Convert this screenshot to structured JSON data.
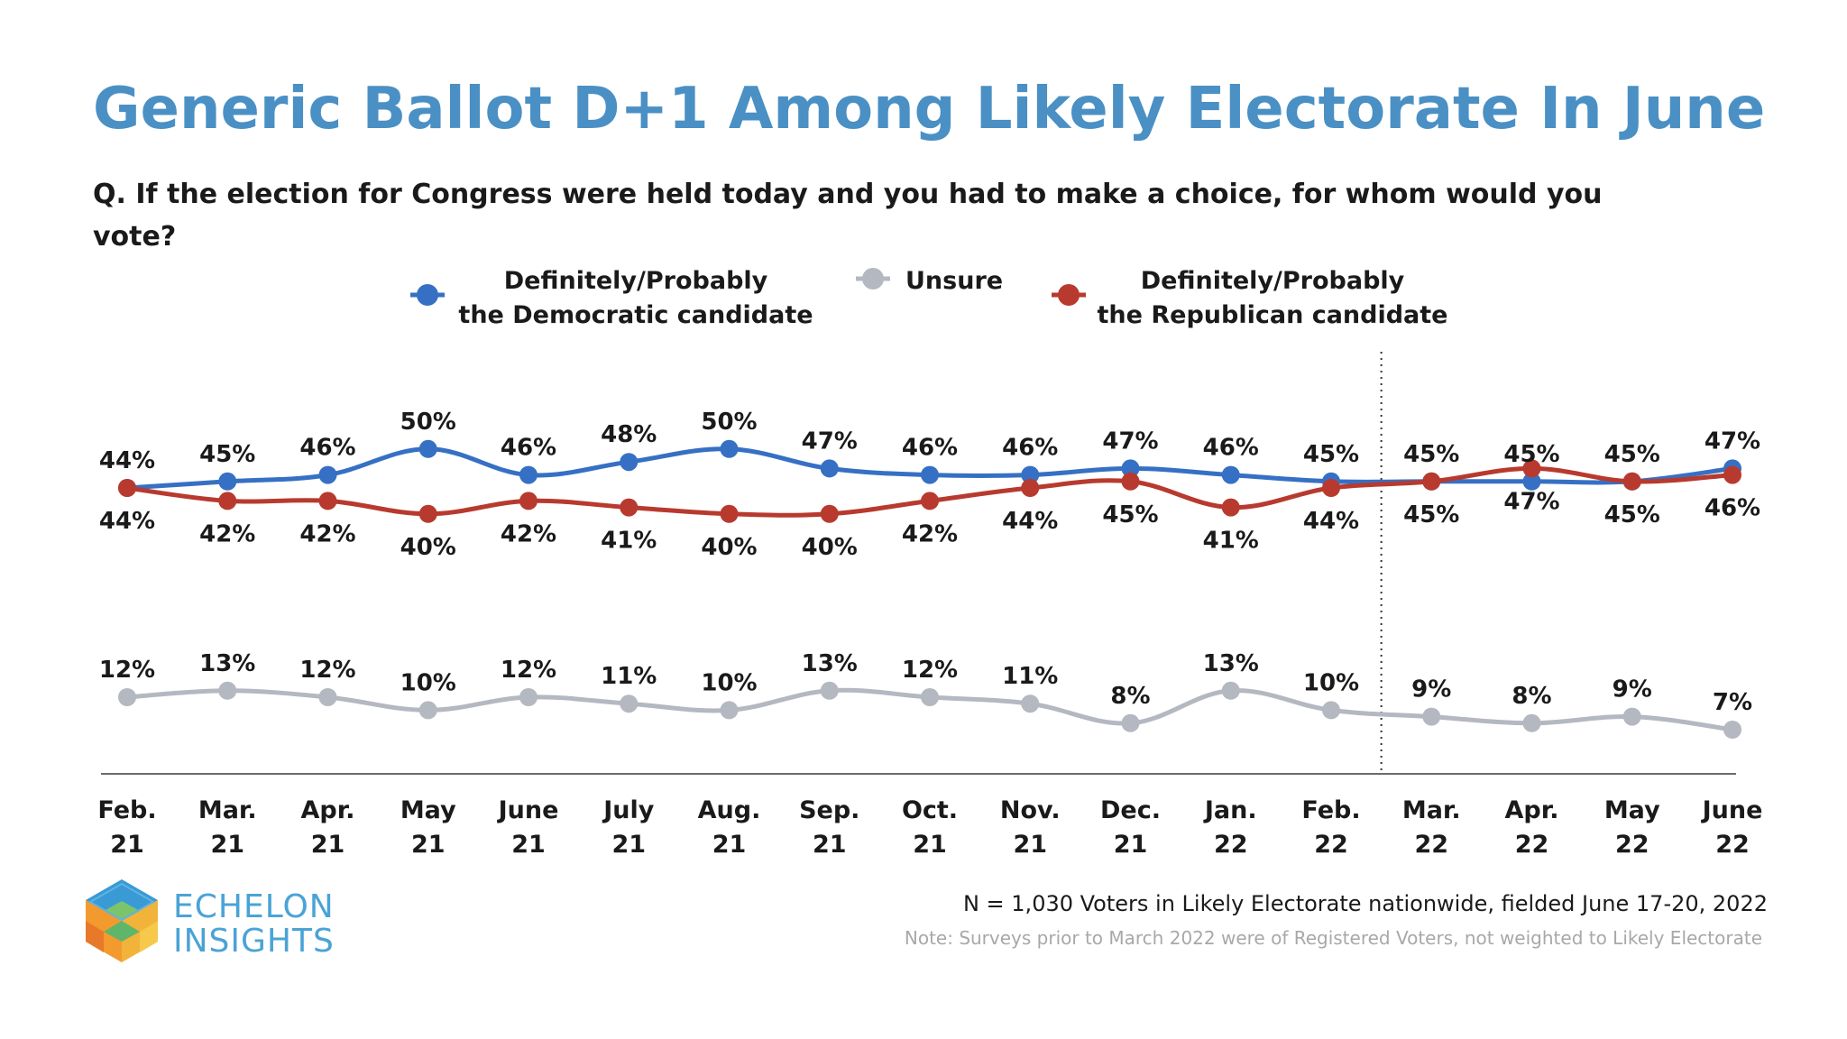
{
  "title": "Generic Ballot D+1 Among Likely Electorate In June",
  "question": {
    "line1": "Q. If the election for Congress were held today and you had to make a choice, for whom would you",
    "line2": "vote?"
  },
  "legend": [
    {
      "line1": "Definitely/Probably",
      "line2": "the Democratic candidate"
    },
    {
      "line1": "Unsure",
      "line2": ""
    },
    {
      "line1": "Definitely/Probably",
      "line2": "the Republican candidate"
    }
  ],
  "source": "N = 1,030 Voters in Likely Electorate nationwide, fielded June 17-20, 2022",
  "note": "Note: Surveys prior to March 2022 were of Registered Voters, not weighted to Likely Electorate",
  "brand": {
    "line1": "ECHELON",
    "line2": "INSIGHTS"
  },
  "chart_data": {
    "type": "line",
    "x_labels": [
      [
        "Feb.",
        "21"
      ],
      [
        "Mar.",
        "21"
      ],
      [
        "Apr.",
        "21"
      ],
      [
        "May",
        "21"
      ],
      [
        "June",
        "21"
      ],
      [
        "July",
        "21"
      ],
      [
        "Aug.",
        "21"
      ],
      [
        "Sep.",
        "21"
      ],
      [
        "Oct.",
        "21"
      ],
      [
        "Nov.",
        "21"
      ],
      [
        "Dec.",
        "21"
      ],
      [
        "Jan.",
        "22"
      ],
      [
        "Feb.",
        "22"
      ],
      [
        "Mar.",
        "22"
      ],
      [
        "Apr.",
        "22"
      ],
      [
        "May",
        "22"
      ],
      [
        "June",
        "22"
      ]
    ],
    "series": [
      {
        "name": "Definitely/Probably the Democratic candidate",
        "key": "dem",
        "color": "#3670c4",
        "values": [
          44,
          45,
          46,
          50,
          46,
          48,
          50,
          47,
          46,
          46,
          47,
          46,
          45,
          45,
          45,
          45,
          47
        ],
        "plot_values": [
          44,
          45,
          46,
          50,
          46,
          48,
          50,
          47,
          46,
          46,
          47,
          46,
          45,
          45,
          45,
          45,
          47
        ],
        "label_position": "above"
      },
      {
        "name": "Definitely/Probably the Republican candidate",
        "key": "rep",
        "color": "#b83a2e",
        "values": [
          44,
          42,
          42,
          40,
          42,
          41,
          40,
          40,
          42,
          44,
          45,
          41,
          44,
          45,
          47,
          45,
          46
        ],
        "plot_values": [
          44,
          42,
          42,
          40,
          42,
          41,
          40,
          40,
          42,
          44,
          45,
          41,
          44,
          45,
          47,
          45,
          46
        ],
        "label_position": "below"
      },
      {
        "name": "Unsure",
        "key": "unsure",
        "color": "#b4b8c0",
        "values": [
          12,
          13,
          12,
          10,
          12,
          11,
          10,
          13,
          12,
          11,
          8,
          13,
          10,
          9,
          8,
          9,
          7
        ],
        "plot_values": [
          12,
          13,
          12,
          10,
          12,
          11,
          10,
          13,
          12,
          11,
          8,
          13,
          10,
          9,
          8,
          9,
          7
        ],
        "label_position": "above"
      }
    ],
    "value_suffix": "%",
    "divider_after_index": 12,
    "divider_style": "dotted vertical line between Feb. 22 and Mar. 22"
  }
}
